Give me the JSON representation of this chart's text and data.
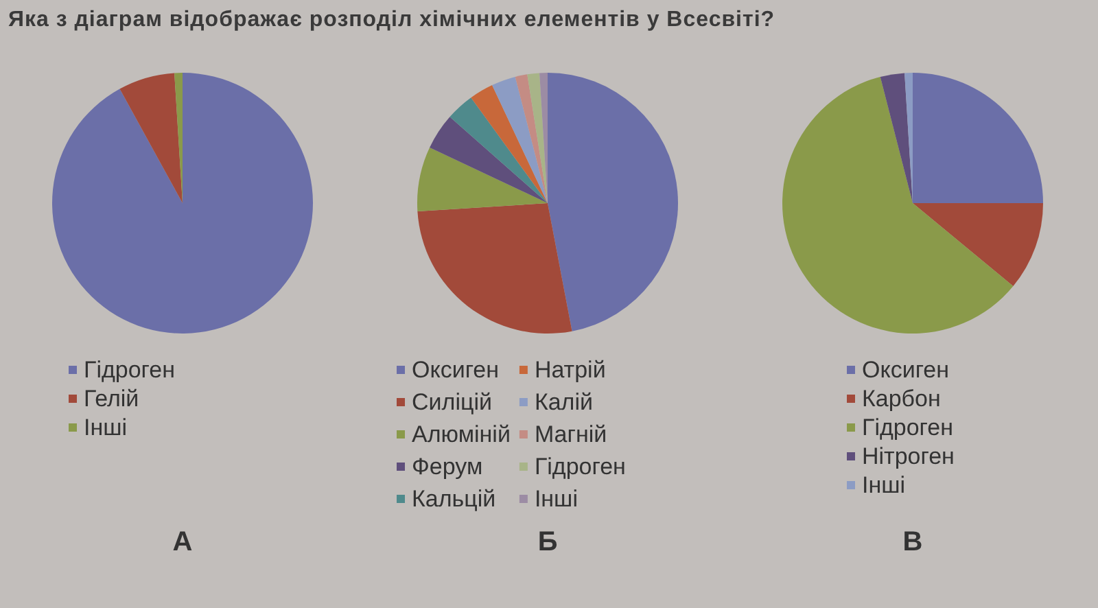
{
  "chart_data": [
    {
      "type": "pie",
      "title": "А",
      "annotations": [
        "Яка з діаграм відображає розподіл хімічних елементів у Всесвіті?"
      ],
      "legend": "bottom",
      "categories": [
        "Гідроген",
        "Гелій",
        "Інші"
      ],
      "values": [
        92,
        7,
        1
      ],
      "colors": [
        "#6b6fa8",
        "#a24a3a",
        "#8a9a4a"
      ]
    },
    {
      "type": "pie",
      "title": "Б",
      "legend": "bottom",
      "categories": [
        "Оксиген",
        "Силіцій",
        "Алюміній",
        "Ферум",
        "Кальцій",
        "Натрій",
        "Калій",
        "Магній",
        "Гідроген",
        "Інші"
      ],
      "values": [
        47,
        27,
        8,
        4.5,
        3.5,
        3,
        3,
        1.5,
        1.5,
        1
      ],
      "colors": [
        "#6b6fa8",
        "#a24a3a",
        "#8a9a4a",
        "#5f4f7c",
        "#4f8a8c",
        "#c8683a",
        "#8c9cc4",
        "#c48c84",
        "#a8b488",
        "#9c8ca4"
      ]
    },
    {
      "type": "pie",
      "title": "В",
      "legend": "bottom",
      "categories": [
        "Оксиген",
        "Карбон",
        "Гідроген",
        "Нітроген",
        "Інші"
      ],
      "values": [
        25,
        11,
        60,
        3,
        1
      ],
      "colors": [
        "#6b6fa8",
        "#a24a3a",
        "#8a9a4a",
        "#5f4f7c",
        "#8c9cc4"
      ]
    }
  ]
}
